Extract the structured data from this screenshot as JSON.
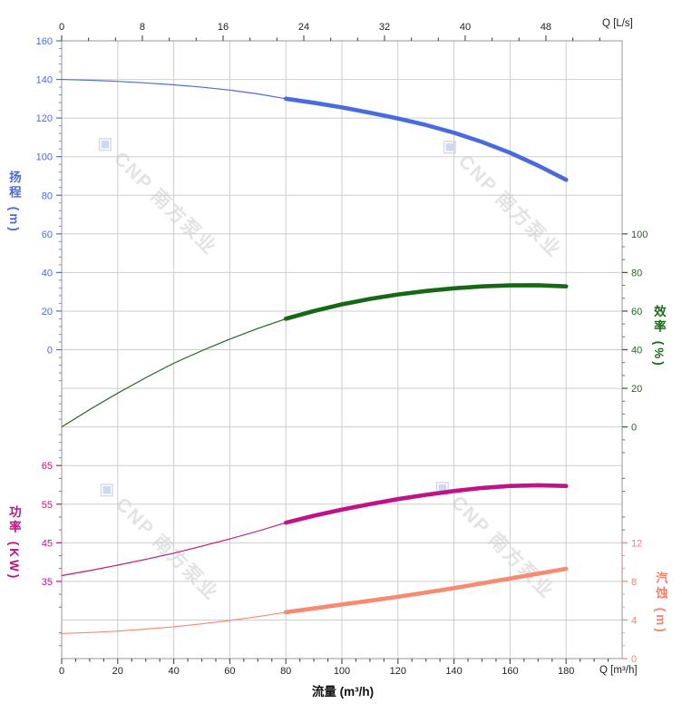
{
  "watermark": {
    "logo_icon": "cnp-diamond-logo",
    "brand": "CNP 南方泵业",
    "logo_glyph": "◈"
  },
  "chart_data": {
    "type": "line",
    "title": "",
    "x_axis": {
      "bottom_title": "流量 (m³/h)",
      "bottom_unit_label": "Q [m³/h]",
      "bottom_ticks": [
        0,
        20,
        40,
        60,
        80,
        100,
        120,
        140,
        160,
        180
      ],
      "bottom_minor_step": 5,
      "top_unit_label": "Q [L/s]",
      "top_ticks": [
        0,
        8,
        16,
        24,
        32,
        40,
        48
      ],
      "range_m3h": [
        0,
        200
      ],
      "grid": true
    },
    "y_axes": [
      {
        "id": "head",
        "title": "扬程 (m)",
        "side": "left",
        "ticks": [
          160,
          140,
          120,
          100,
          80,
          60,
          40,
          20,
          0
        ],
        "color": "#4a6be0"
      },
      {
        "id": "efficiency",
        "title": "效率 (%)",
        "side": "right",
        "ticks": [
          100,
          80,
          60,
          40,
          20,
          0
        ],
        "color": "#1a6b1a"
      },
      {
        "id": "power",
        "title": "功率 (KW)",
        "side": "left",
        "ticks": [
          65,
          55,
          45,
          35
        ],
        "color": "#c01388"
      },
      {
        "id": "npsh",
        "title": "汽蚀 (m)",
        "side": "right",
        "ticks": [
          12,
          8,
          4,
          0
        ],
        "color": "#f4836a"
      }
    ],
    "rated_range_m3h": [
      80,
      180
    ],
    "x": [
      0,
      10,
      20,
      30,
      40,
      50,
      60,
      70,
      80,
      90,
      100,
      110,
      120,
      130,
      140,
      150,
      160,
      170,
      180
    ],
    "series": [
      {
        "name": "扬程",
        "axis": "head",
        "unit": "m",
        "color": "#4a6be0",
        "values": [
          140,
          139.6,
          139,
          138.2,
          137.2,
          136,
          134.5,
          132.5,
          130,
          127.9,
          125.5,
          122.8,
          119.8,
          116.4,
          112.4,
          107.6,
          102,
          95.4,
          88
        ]
      },
      {
        "name": "效率",
        "axis": "efficiency",
        "unit": "%",
        "color": "#156915",
        "values": [
          0,
          9,
          17.5,
          25.5,
          33,
          39.5,
          45.5,
          51,
          56,
          60,
          63.5,
          66.3,
          68.6,
          70.4,
          71.8,
          72.8,
          73.3,
          73.4,
          72.8
        ]
      },
      {
        "name": "功率",
        "axis": "power",
        "unit": "KW",
        "color": "#c01388",
        "values": [
          36.5,
          37.8,
          39.2,
          40.7,
          42.3,
          44.1,
          46,
          48,
          50.2,
          52,
          53.6,
          55,
          56.3,
          57.4,
          58.4,
          59.2,
          59.7,
          59.9,
          59.7
        ]
      },
      {
        "name": "汽蚀",
        "axis": "npsh",
        "unit": "m",
        "color": "#f78a70",
        "values": [
          2.6,
          2.7,
          2.85,
          3.05,
          3.3,
          3.6,
          3.95,
          4.35,
          4.8,
          5.2,
          5.6,
          6.0,
          6.4,
          6.85,
          7.3,
          7.8,
          8.3,
          8.8,
          9.3
        ]
      }
    ]
  }
}
